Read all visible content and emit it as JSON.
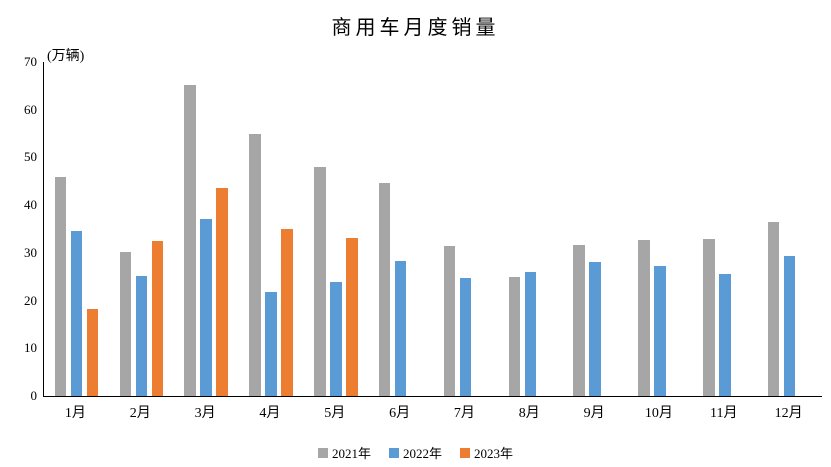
{
  "chart": {
    "title": "商用车月度销量",
    "unit_label": "(万辆)"
  },
  "chart_data": {
    "type": "bar",
    "title": "商用车月度销量",
    "ylabel": "(万辆)",
    "xlabel": "",
    "categories": [
      "1月",
      "2月",
      "3月",
      "4月",
      "5月",
      "6月",
      "7月",
      "8月",
      "9月",
      "10月",
      "11月",
      "12月"
    ],
    "series": [
      {
        "name": "2021年",
        "color": "#A6A6A6",
        "values": [
          45.9,
          30.1,
          65.2,
          54.9,
          48.1,
          44.6,
          31.4,
          25.0,
          31.7,
          32.8,
          33.0,
          36.5
        ]
      },
      {
        "name": "2022年",
        "color": "#5B9BD5",
        "values": [
          34.6,
          25.2,
          37.0,
          21.8,
          23.9,
          28.2,
          24.7,
          25.9,
          28.0,
          27.3,
          25.5,
          29.3
        ]
      },
      {
        "name": "2023年",
        "color": "#ED7D31",
        "values": [
          18.3,
          32.5,
          43.7,
          35.0,
          33.1,
          null,
          null,
          null,
          null,
          null,
          null,
          null
        ]
      }
    ],
    "ylim": [
      0,
      70
    ],
    "ytick_interval": 10,
    "grid": false,
    "legend_position": "bottom",
    "axis_color": "#000000",
    "background_color": "#FFFFFF"
  }
}
